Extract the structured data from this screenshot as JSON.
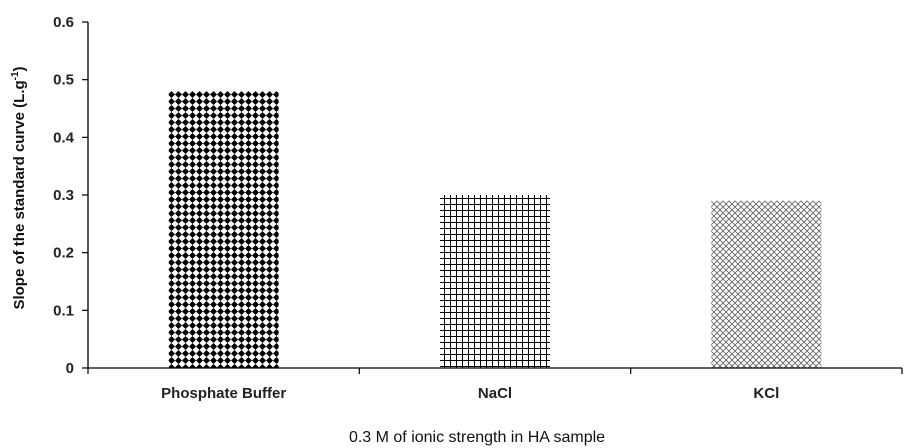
{
  "chart_data": {
    "type": "bar",
    "categories": [
      "Phosphate Buffer",
      "NaCl",
      "KCl"
    ],
    "values": [
      0.48,
      0.3,
      0.29
    ],
    "title": "",
    "xlabel": "0.3 M of ionic strength in HA sample",
    "ylabel": "Slope of the standard curve (L.g",
    "ylabel_sup": "-1",
    "ylabel_close": ")",
    "ylim": [
      0,
      0.6
    ],
    "yticks": [
      0,
      0.1,
      0.2,
      0.3,
      0.4,
      0.5,
      0.6
    ],
    "ytick_labels": [
      "0",
      "0.1",
      "0.2",
      "0.3",
      "0.4",
      "0.5",
      "0.6"
    ],
    "grid": false,
    "legend": "none",
    "bar_patterns": [
      "diamond",
      "grid",
      "crosshatch"
    ],
    "colors": {
      "pattern_dark": "#000000",
      "pattern_light": "#777777",
      "axis": "#000000"
    }
  }
}
